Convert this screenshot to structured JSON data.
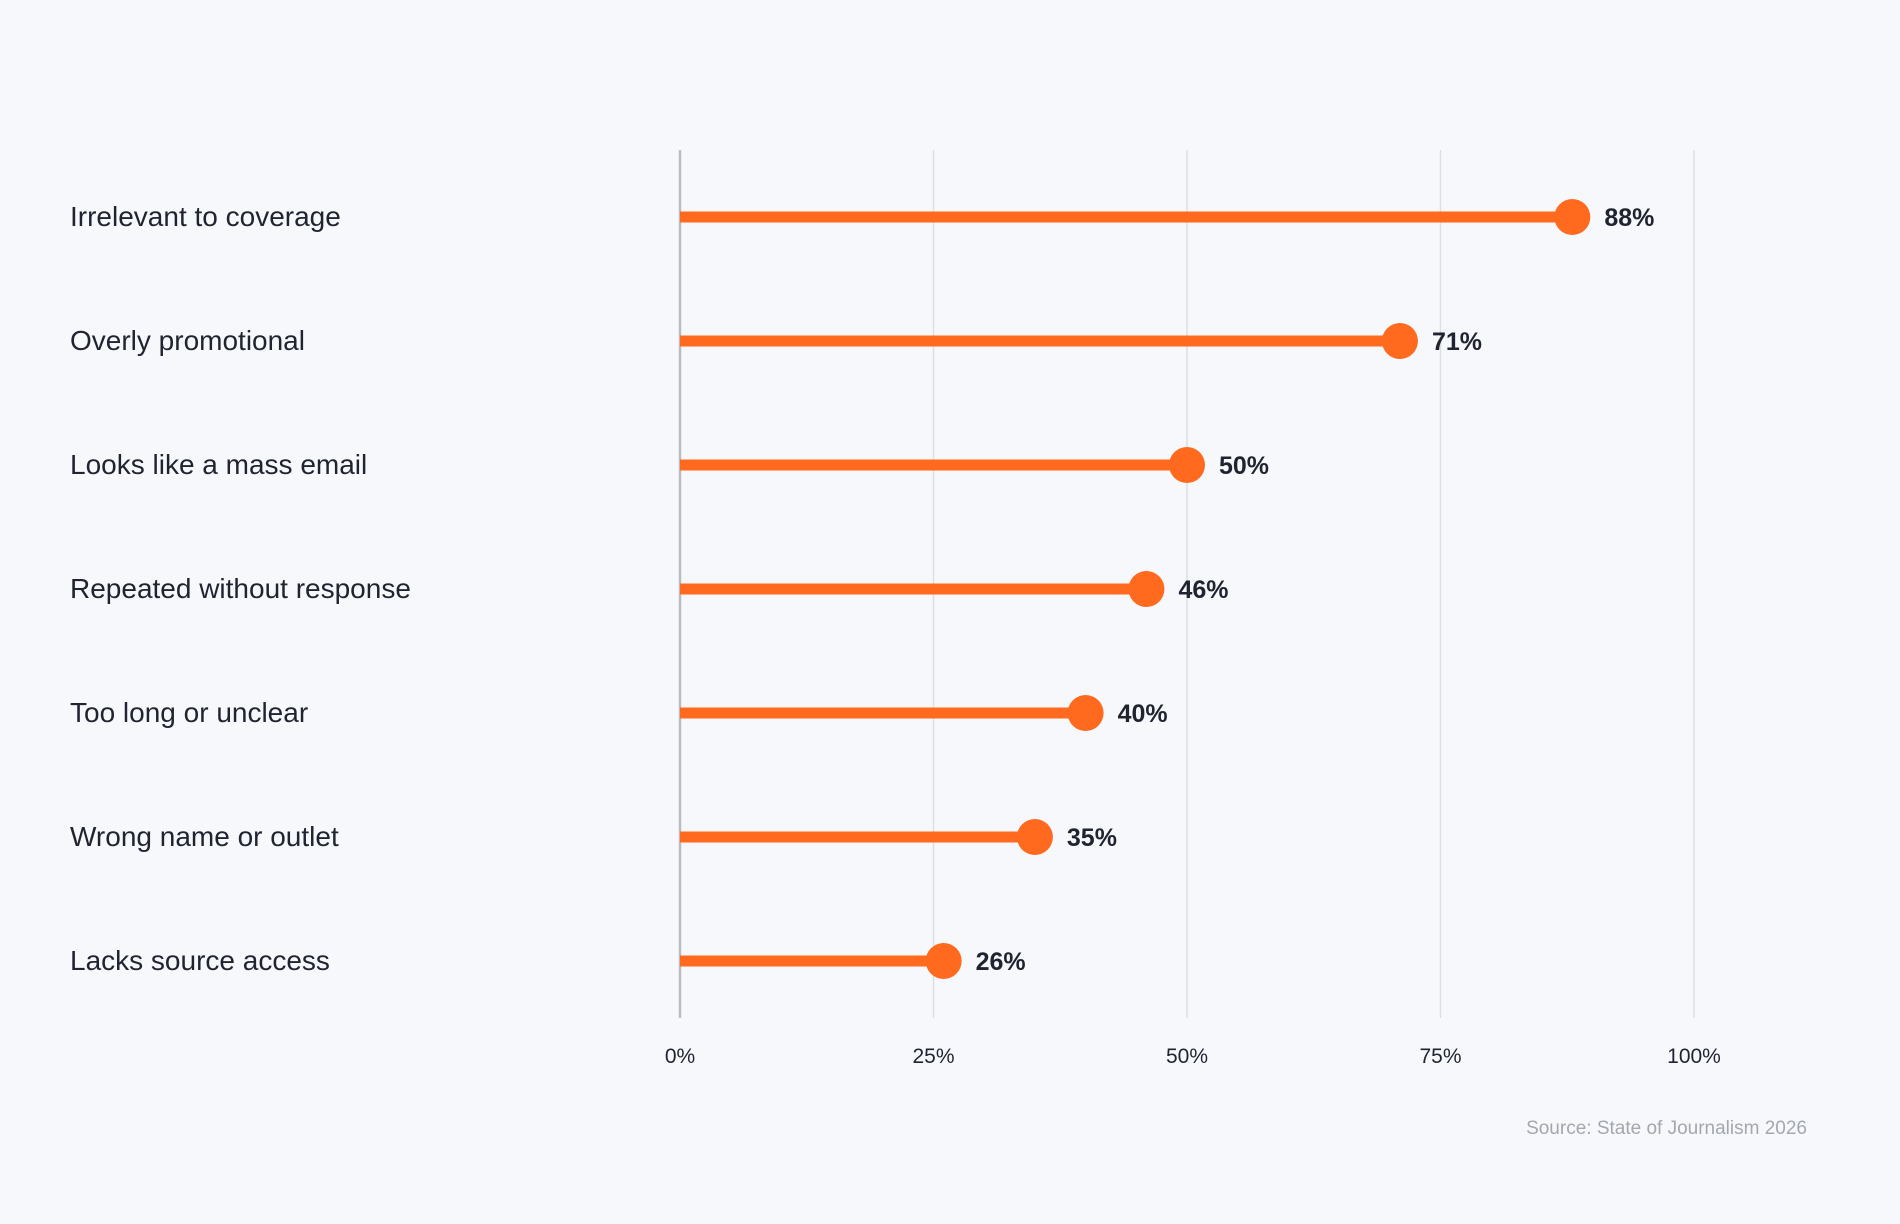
{
  "chart_data": {
    "type": "lollipop",
    "categories": [
      "Irrelevant to coverage",
      "Overly promotional",
      "Looks like a mass email",
      "Repeated without response",
      "Too long or unclear",
      "Wrong name or outlet",
      "Lacks source access"
    ],
    "values": [
      88,
      71,
      50,
      46,
      40,
      35,
      26
    ],
    "value_labels": [
      "88%",
      "71%",
      "50%",
      "46%",
      "40%",
      "35%",
      "26%"
    ],
    "x_ticks": [
      0,
      25,
      50,
      75,
      100
    ],
    "x_tick_labels": [
      "0%",
      "25%",
      "50%",
      "75%",
      "100%"
    ],
    "xlim": [
      0,
      100
    ],
    "grid": true,
    "accent_color": "#ff6a1f"
  },
  "source_note": "Source: State of Journalism 2026"
}
